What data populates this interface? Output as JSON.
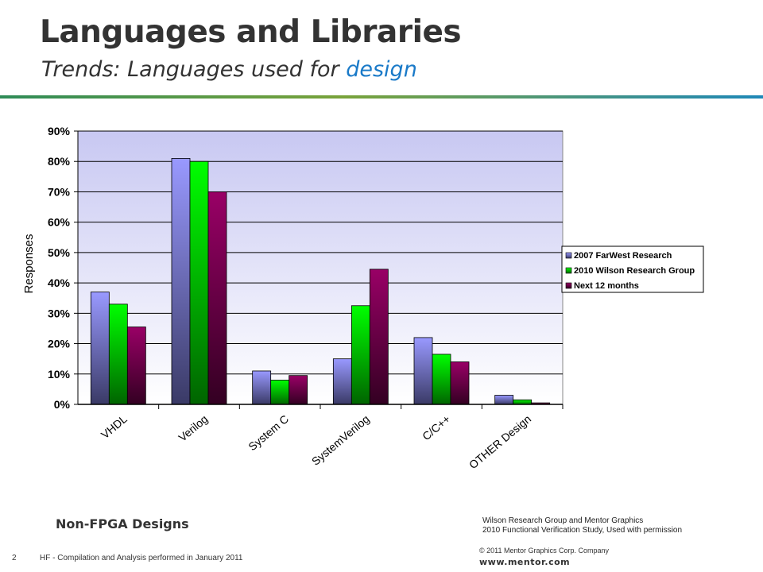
{
  "slide": {
    "title": "Languages and Libraries",
    "subtitle_prefix": "Trends: Languages used for ",
    "subtitle_accent": "design",
    "note": "Non-FPGA Designs",
    "source_line1": "Wilson Research Group and Mentor Graphics",
    "source_line2": "2010 Functional Verification Study,  Used with permission",
    "page_number": "2",
    "footer": "HF - Compilation and Analysis performed in January 2011",
    "copyright": "© 2011 Mentor Graphics Corp. Company",
    "url": "www.mentor.com"
  },
  "chart_data": {
    "type": "bar",
    "ylabel": "Responses",
    "xlabel": "",
    "ylim": [
      0,
      90
    ],
    "yticks": [
      "0%",
      "10%",
      "20%",
      "30%",
      "40%",
      "50%",
      "60%",
      "70%",
      "80%",
      "90%"
    ],
    "categories": [
      "VHDL",
      "Verilog",
      "System C",
      "SystemVerilog",
      "C/C++",
      "OTHER Design"
    ],
    "series": [
      {
        "name": "2007 FarWest Research",
        "values": [
          37,
          81,
          11,
          15,
          22,
          3
        ],
        "color": "#9999ff"
      },
      {
        "name": "2010 Wilson Research Group",
        "values": [
          33,
          80,
          8,
          32.5,
          16.5,
          1.5
        ],
        "color": "#00ff00"
      },
      {
        "name": "Next 12 months",
        "values": [
          25.5,
          70,
          9.5,
          44.5,
          14,
          0.5
        ],
        "color": "#990066"
      }
    ],
    "grid": true,
    "legend": "right"
  }
}
